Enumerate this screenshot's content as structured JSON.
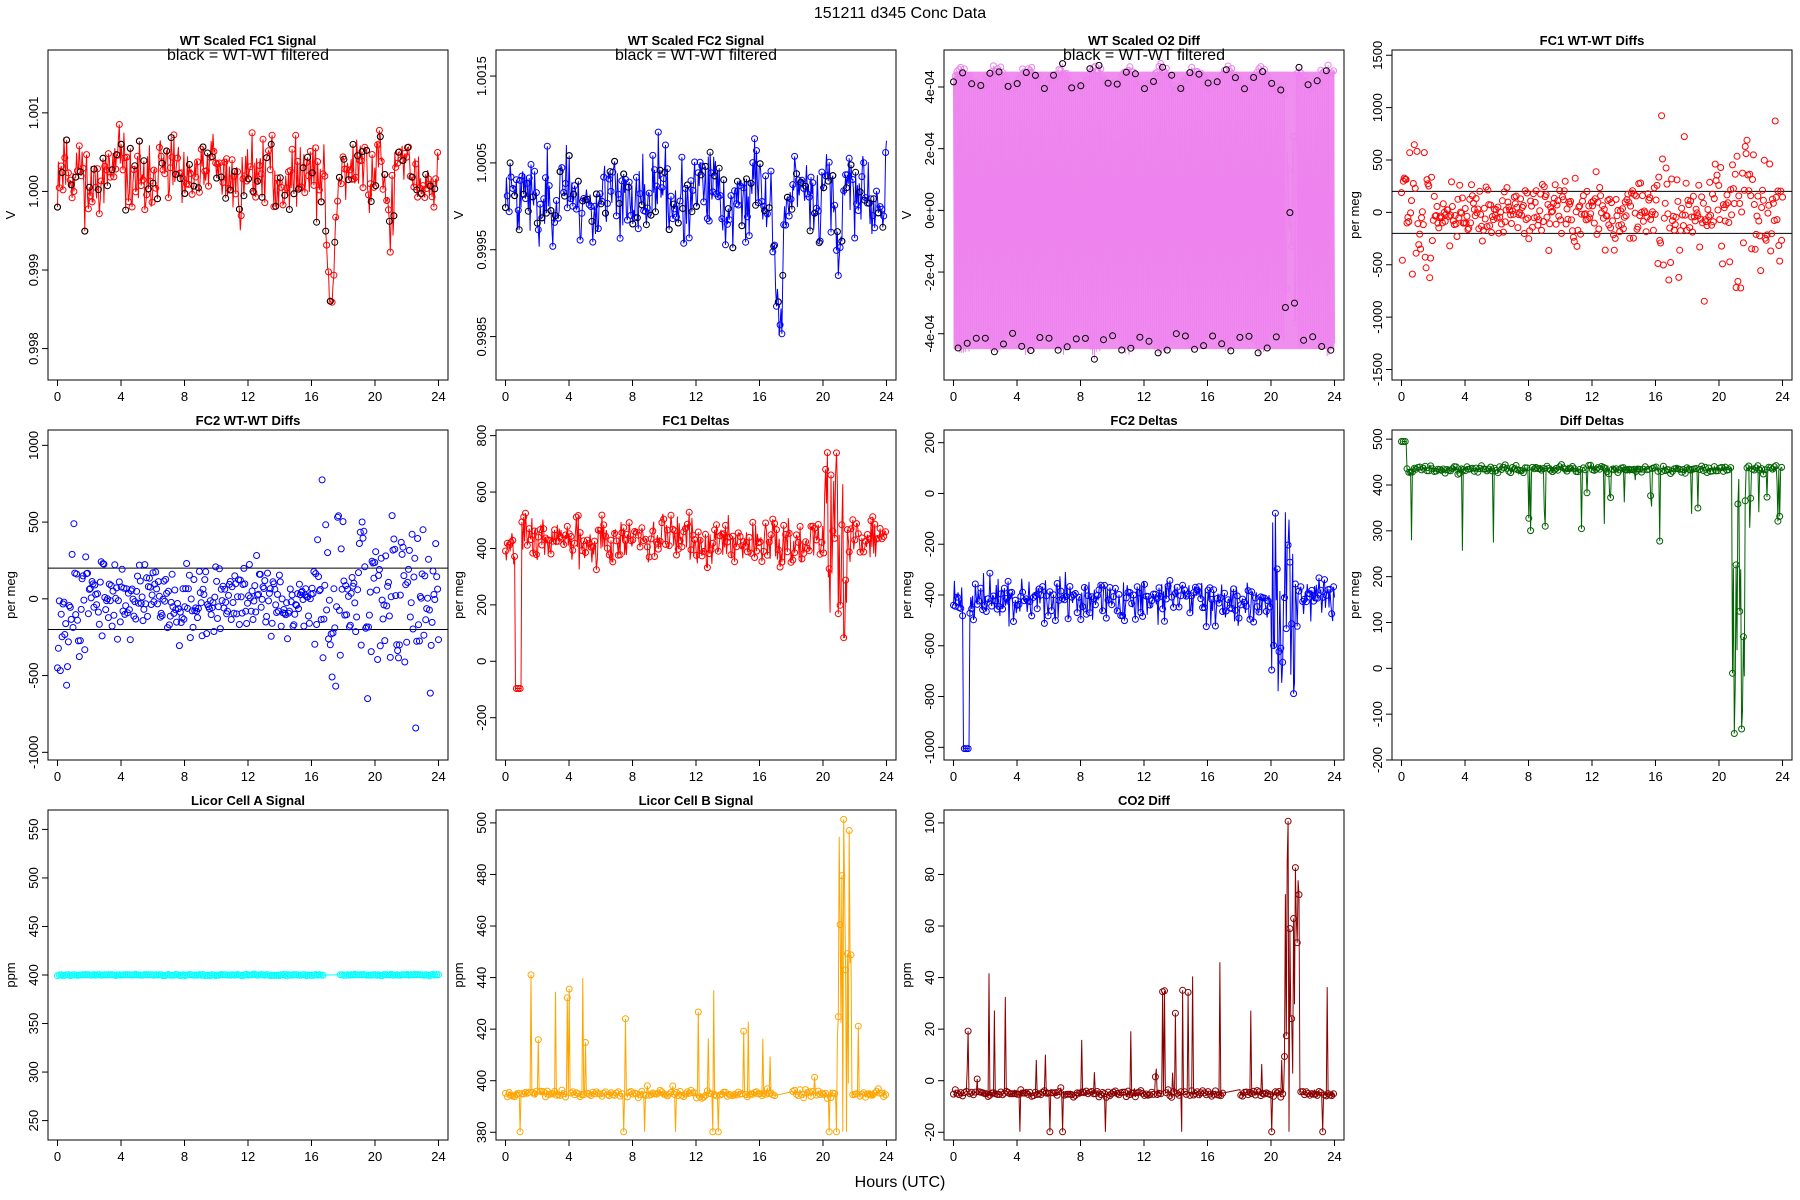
{
  "page_title": "151211    d345    Conc Data",
  "global_xlabel": "Hours (UTC)",
  "chart_data": [
    {
      "id": "wt-fc1",
      "type": "line",
      "title": "WT Scaled FC1 Signal",
      "annotation": "black = WT-WT filtered",
      "ylabel": "V",
      "ylim": [
        0.9976,
        1.0018
      ],
      "yticks": [
        0.998,
        0.999,
        1.0,
        1.001
      ],
      "ytick_labels": [
        "0.998",
        "0.999",
        "1.000",
        "1.001"
      ],
      "xlim": [
        -0.6,
        24.6
      ],
      "xticks": [
        0,
        4,
        8,
        12,
        16,
        20,
        24
      ],
      "series_color": "#ff0000",
      "style": "noise",
      "base": 1.0002,
      "amp": 0.00045,
      "overlay_color": "#000000",
      "seed": 11
    },
    {
      "id": "wt-fc2",
      "type": "line",
      "title": "WT Scaled FC2 Signal",
      "annotation": "black = WT-WT filtered",
      "ylabel": "V",
      "ylim": [
        0.998,
        1.0018
      ],
      "yticks": [
        0.9985,
        0.9995,
        1.0005,
        1.0015
      ],
      "ytick_labels": [
        "0.9985",
        "0.9995",
        "1.0005",
        "1.0015"
      ],
      "xlim": [
        -0.6,
        24.6
      ],
      "xticks": [
        0,
        4,
        8,
        12,
        16,
        20,
        24
      ],
      "series_color": "#0000ff",
      "style": "noise",
      "base": 1.0001,
      "amp": 0.00045,
      "overlay_color": "#000000",
      "seed": 23
    },
    {
      "id": "wt-o2",
      "type": "line",
      "title": "WT Scaled O2 Diff",
      "annotation": "black = WT-WT filtered",
      "ylabel": "V",
      "ylim": [
        -0.00055,
        0.00052
      ],
      "yticks": [
        -0.0004,
        -0.0002,
        0,
        0.0002,
        0.0004
      ],
      "ytick_labels": [
        "-4e-04",
        "-2e-04",
        "0e+00",
        "2e-04",
        "4e-04"
      ],
      "xlim": [
        -0.6,
        24.6
      ],
      "xticks": [
        0,
        4,
        8,
        12,
        16,
        20,
        24
      ],
      "series_color": "#ee82ee",
      "style": "band",
      "base": 0.00043,
      "amp": 3e-05,
      "overlay_color": "#000000",
      "seed": 37
    },
    {
      "id": "fc1-wtwt",
      "type": "scatter",
      "title": "FC1 WT-WT Diffs",
      "annotation": "",
      "ylabel": "per meg",
      "ylim": [
        -1600,
        1550
      ],
      "yticks": [
        -1500,
        -1000,
        -500,
        0,
        500,
        1000,
        1500
      ],
      "ytick_labels": [
        "-1500",
        "-1000",
        "-500",
        "0",
        "500",
        "1000",
        "1500"
      ],
      "xlim": [
        -0.6,
        24.6
      ],
      "xticks": [
        0,
        4,
        8,
        12,
        16,
        20,
        24
      ],
      "hlines": [
        200,
        -200
      ],
      "series_color": "#ff0000",
      "style": "scatter",
      "base": 0,
      "amp": 200,
      "seed": 41
    },
    {
      "id": "fc2-wtwt",
      "type": "scatter",
      "title": "FC2 WT-WT Diffs",
      "annotation": "",
      "ylabel": "per meg",
      "ylim": [
        -1050,
        1100
      ],
      "yticks": [
        -1000,
        -500,
        0,
        500,
        1000
      ],
      "ytick_labels": [
        "-1000",
        "-500",
        "0",
        "500",
        "1000"
      ],
      "xlim": [
        -0.6,
        24.6
      ],
      "xticks": [
        0,
        4,
        8,
        12,
        16,
        20,
        24
      ],
      "hlines": [
        200,
        -200
      ],
      "series_color": "#0000ff",
      "style": "scatter",
      "base": 0,
      "amp": 170,
      "seed": 53
    },
    {
      "id": "fc1-deltas",
      "type": "line",
      "title": "FC1 Deltas",
      "annotation": "",
      "ylabel": "per meg",
      "ylim": [
        -350,
        820
      ],
      "yticks": [
        -200,
        0,
        200,
        400,
        600,
        800
      ],
      "ytick_labels": [
        "-200",
        "0",
        "200",
        "400",
        "600",
        "800"
      ],
      "xlim": [
        -0.6,
        24.6
      ],
      "xticks": [
        0,
        4,
        8,
        12,
        16,
        20,
        24
      ],
      "series_color": "#ff0000",
      "style": "delta",
      "base": 430,
      "amp": 60,
      "seed": 67
    },
    {
      "id": "fc2-deltas",
      "type": "line",
      "title": "FC2 Deltas",
      "annotation": "",
      "ylabel": "per meg",
      "ylim": [
        -1050,
        250
      ],
      "yticks": [
        -1000,
        -800,
        -600,
        -400,
        -200,
        0,
        200
      ],
      "ytick_labels": [
        "-1000",
        "-800",
        "-600",
        "-400",
        "-200",
        "0",
        "200"
      ],
      "xlim": [
        -0.6,
        24.6
      ],
      "xticks": [
        0,
        4,
        8,
        12,
        16,
        20,
        24
      ],
      "series_color": "#0000ff",
      "style": "delta",
      "base": -420,
      "amp": 60,
      "seed": 71
    },
    {
      "id": "diff-deltas",
      "type": "line",
      "title": "Diff Deltas",
      "annotation": "",
      "ylabel": "per meg",
      "ylim": [
        -200,
        520
      ],
      "yticks": [
        -200,
        -100,
        0,
        100,
        200,
        300,
        400,
        500
      ],
      "ytick_labels": [
        "-200",
        "-100",
        "0",
        "100",
        "200",
        "300",
        "400",
        "500"
      ],
      "xlim": [
        -0.6,
        24.6
      ],
      "xticks": [
        0,
        4,
        8,
        12,
        16,
        20,
        24
      ],
      "series_color": "#006400",
      "style": "diffdelta",
      "base": 435,
      "amp": 6,
      "seed": 83
    },
    {
      "id": "licor-a",
      "type": "line",
      "title": "Licor Cell A Signal",
      "annotation": "",
      "ylabel": "ppm",
      "ylim": [
        230,
        570
      ],
      "yticks": [
        250,
        300,
        350,
        400,
        450,
        500,
        550
      ],
      "ytick_labels": [
        "250",
        "300",
        "350",
        "400",
        "450",
        "500",
        "550"
      ],
      "xlim": [
        -0.6,
        24.6
      ],
      "xticks": [
        0,
        4,
        8,
        12,
        16,
        20,
        24
      ],
      "series_color": "#00ffff",
      "style": "flat",
      "base": 400,
      "amp": 0.5,
      "seed": 97
    },
    {
      "id": "licor-b",
      "type": "line",
      "title": "Licor Cell B Signal",
      "annotation": "",
      "ylabel": "ppm",
      "ylim": [
        377,
        505
      ],
      "yticks": [
        380,
        400,
        420,
        440,
        460,
        480,
        500
      ],
      "ytick_labels": [
        "380",
        "400",
        "420",
        "440",
        "460",
        "480",
        "500"
      ],
      "xlim": [
        -0.6,
        24.6
      ],
      "xticks": [
        0,
        4,
        8,
        12,
        16,
        20,
        24
      ],
      "series_color": "#ffa500",
      "style": "spiky",
      "base": 395,
      "amp": 1,
      "seed": 101
    },
    {
      "id": "co2-diff",
      "type": "line",
      "title": "CO2 Diff",
      "annotation": "",
      "ylabel": "ppm",
      "ylim": [
        -23,
        105
      ],
      "yticks": [
        -20,
        0,
        20,
        40,
        60,
        80,
        100
      ],
      "ytick_labels": [
        "-20",
        "0",
        "20",
        "40",
        "60",
        "80",
        "100"
      ],
      "xlim": [
        -0.6,
        24.6
      ],
      "xticks": [
        0,
        4,
        8,
        12,
        16,
        20,
        24
      ],
      "series_color": "#8b0000",
      "style": "spiky",
      "base": -5,
      "amp": 1,
      "seed": 113
    }
  ]
}
